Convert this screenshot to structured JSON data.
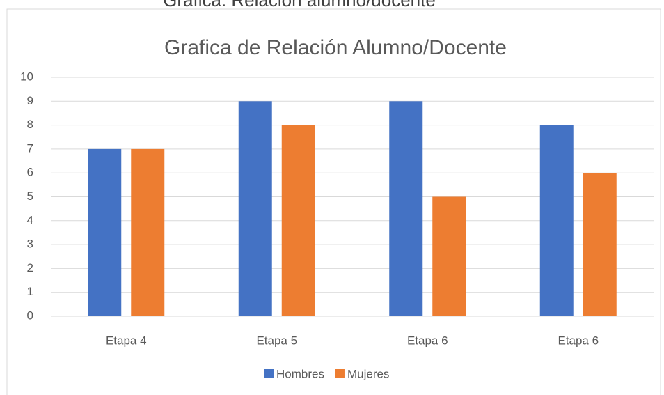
{
  "header_text": "Grafica: Relación alumno/docente",
  "chart_data": {
    "type": "bar",
    "title": "Grafica de Relación Alumno/Docente",
    "categories": [
      "Etapa 4",
      "Etapa 5",
      "Etapa 6",
      "Etapa 6"
    ],
    "series": [
      {
        "name": "Hombres",
        "color": "#4472c4",
        "values": [
          7,
          9,
          9,
          8
        ]
      },
      {
        "name": "Mujeres",
        "color": "#ed7d31",
        "values": [
          7,
          8,
          5,
          6
        ]
      }
    ],
    "ylim": [
      0,
      10
    ],
    "yticks": [
      0,
      1,
      2,
      3,
      4,
      5,
      6,
      7,
      8,
      9,
      10
    ],
    "grid": true,
    "legend": "bottom"
  }
}
